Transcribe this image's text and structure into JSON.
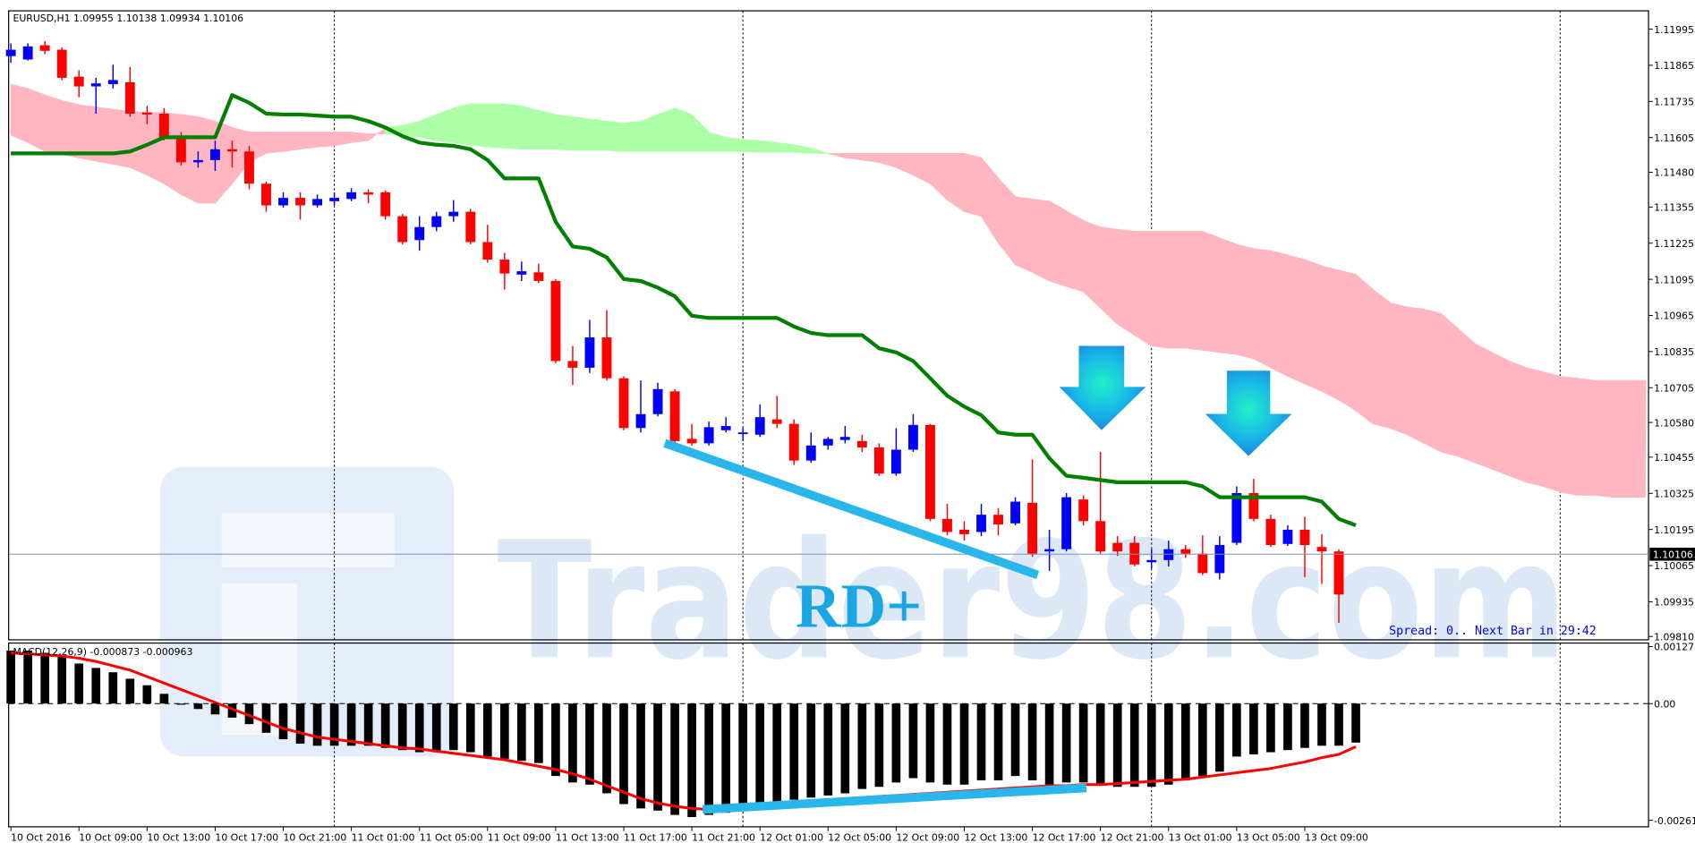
{
  "chart_data": [
    {
      "type": "candlestick",
      "title": "EURUSD,H1  1.09955 1.10138 1.09934 1.10106",
      "up_color": "#0000ff",
      "down_color": "#ff0000",
      "open": [
        1.11898,
        1.11886,
        1.11937,
        1.11921,
        1.11824,
        1.11789,
        1.11797,
        1.11804,
        1.11695,
        1.11691,
        1.11606,
        1.11516,
        1.11524,
        1.11563,
        1.11555,
        1.11439,
        1.11361,
        1.11388,
        1.11361,
        1.11376,
        1.11384,
        1.11408,
        1.11408,
        1.11322,
        1.11236,
        1.11283,
        1.11322,
        1.11338,
        1.11229,
        1.11166,
        1.11112,
        1.1112,
        1.11089,
        1.10801,
        1.10777,
        1.10886,
        1.10739,
        1.1056,
        1.1061,
        1.10692,
        1.10521,
        1.10505,
        1.10552,
        1.1054,
        1.10536,
        1.10591,
        1.10575,
        1.10443,
        1.10497,
        1.10517,
        1.10513,
        1.1049,
        1.10396,
        1.10482,
        1.10571,
        1.10233,
        1.10194,
        1.10186,
        1.10248,
        1.10217,
        1.10291,
        1.10116,
        1.10124,
        1.10303,
        1.10225,
        1.10147,
        1.10147,
        1.10077,
        1.10085,
        1.10124,
        1.10108,
        1.10038,
        1.10147,
        1.10326,
        1.10233,
        1.10143,
        1.10194,
        1.10132,
        1.10116
      ],
      "high": [
        1.11944,
        1.11944,
        1.11952,
        1.11929,
        1.11847,
        1.1182,
        1.11867,
        1.11859,
        1.11719,
        1.11711,
        1.11625,
        1.11555,
        1.11594,
        1.11594,
        1.11575,
        1.11446,
        1.11408,
        1.11408,
        1.114,
        1.11408,
        1.11423,
        1.11419,
        1.11415,
        1.1133,
        1.11322,
        1.11338,
        1.1138,
        1.11349,
        1.11291,
        1.1119,
        1.11159,
        1.11151,
        1.11096,
        1.10855,
        1.10949,
        1.10984,
        1.10746,
        1.10731,
        1.10723,
        1.107,
        1.10575,
        1.10583,
        1.10599,
        1.1056,
        1.10645,
        1.10676,
        1.10591,
        1.10544,
        1.10528,
        1.10567,
        1.10536,
        1.10505,
        1.1056,
        1.1061,
        1.10575,
        1.10287,
        1.10225,
        1.10287,
        1.10272,
        1.10311,
        1.10447,
        1.10194,
        1.10326,
        1.10318,
        1.10474,
        1.10171,
        1.10171,
        1.10124,
        1.10155,
        1.10139,
        1.10174,
        1.10171,
        1.1035,
        1.10377,
        1.10248,
        1.1021,
        1.10241,
        1.10178,
        1.10124
      ],
      "low": [
        1.11874,
        1.11882,
        1.11905,
        1.11812,
        1.1175,
        1.11691,
        1.11781,
        1.1168,
        1.11653,
        1.11594,
        1.11505,
        1.11497,
        1.11485,
        1.11497,
        1.11419,
        1.11338,
        1.11353,
        1.1131,
        1.11353,
        1.11361,
        1.11376,
        1.11369,
        1.1131,
        1.11221,
        1.11198,
        1.11268,
        1.11302,
        1.11221,
        1.11155,
        1.11058,
        1.11089,
        1.11081,
        1.10793,
        1.10715,
        1.10758,
        1.10731,
        1.10552,
        1.10544,
        1.10602,
        1.10505,
        1.10497,
        1.10497,
        1.10544,
        1.10513,
        1.10528,
        1.1056,
        1.10427,
        1.10435,
        1.10482,
        1.10505,
        1.10474,
        1.10388,
        1.10388,
        1.10474,
        1.10225,
        1.10174,
        1.10155,
        1.10171,
        1.10174,
        1.1021,
        1.10097,
        1.10046,
        1.10116,
        1.1021,
        1.10108,
        1.101,
        1.10062,
        1.10054,
        1.10062,
        1.10093,
        1.10031,
        1.10015,
        1.10139,
        1.10225,
        1.10132,
        1.10136,
        1.10023,
        1.09999,
        1.09859
      ],
      "close": [
        1.11921,
        1.11933,
        1.11917,
        1.1182,
        1.11789,
        1.118,
        1.11812,
        1.11691,
        1.11688,
        1.11606,
        1.11516,
        1.11524,
        1.11563,
        1.11555,
        1.11439,
        1.11361,
        1.11388,
        1.11361,
        1.11384,
        1.11388,
        1.11408,
        1.114,
        1.11322,
        1.11229,
        1.11283,
        1.11322,
        1.11338,
        1.11229,
        1.11166,
        1.11116,
        1.11124,
        1.11089,
        1.10801,
        1.10777,
        1.10886,
        1.10739,
        1.1056,
        1.1061,
        1.107,
        1.10513,
        1.10505,
        1.10563,
        1.10567,
        1.10544,
        1.10599,
        1.10575,
        1.10443,
        1.10497,
        1.10521,
        1.10528,
        1.1049,
        1.10396,
        1.10482,
        1.10571,
        1.10233,
        1.10186,
        1.10178,
        1.10248,
        1.10213,
        1.10295,
        1.10108,
        1.10124,
        1.10311,
        1.10225,
        1.10116,
        1.10116,
        1.10069,
        1.10085,
        1.10124,
        1.10108,
        1.10038,
        1.10139,
        1.10326,
        1.10233,
        1.10139,
        1.10194,
        1.10139,
        1.10116,
        1.09961
      ],
      "kijun": {
        "color": "#008000",
        "values": [
          1.11548,
          1.11548,
          1.11548,
          1.11548,
          1.11548,
          1.11548,
          1.11548,
          1.11555,
          1.11579,
          1.11606,
          1.11606,
          1.11606,
          1.11606,
          1.11758,
          1.1173,
          1.11691,
          1.11688,
          1.11688,
          1.11684,
          1.1168,
          1.1168,
          1.11664,
          1.11641,
          1.1161,
          1.11587,
          1.11579,
          1.11575,
          1.11563,
          1.11524,
          1.11458,
          1.11458,
          1.11458,
          1.11302,
          1.11213,
          1.11205,
          1.11174,
          1.11096,
          1.11089,
          1.11065,
          1.11034,
          1.10964,
          1.10956,
          1.10956,
          1.10956,
          1.10956,
          1.10956,
          1.10925,
          1.10902,
          1.10894,
          1.10894,
          1.10894,
          1.10847,
          1.10832,
          1.10801,
          1.10739,
          1.10676,
          1.10637,
          1.10606,
          1.10544,
          1.10536,
          1.10536,
          1.10451,
          1.10388,
          1.10381,
          1.10373,
          1.10365,
          1.10365,
          1.10365,
          1.10365,
          1.10365,
          1.1035,
          1.10311,
          1.10311,
          1.10311,
          1.10311,
          1.10311,
          1.10311,
          1.10295,
          1.10233,
          1.1021
        ]
      },
      "cloud_up_color": "#adffa8",
      "cloud_down_color": "#ffb6c1",
      "span_a": [
        1.11614,
        1.11587,
        1.11555,
        1.11544,
        1.11532,
        1.1152,
        1.11509,
        1.11497,
        1.1147,
        1.11439,
        1.114,
        1.11369,
        1.11369,
        1.11439,
        1.11516,
        1.11548,
        1.11555,
        1.11563,
        1.11571,
        1.11575,
        1.11587,
        1.11594,
        1.11641,
        1.11649,
        1.11664,
        1.11688,
        1.11711,
        1.11727,
        1.11727,
        1.11727,
        1.11719,
        1.11703,
        1.11688,
        1.1168,
        1.11672,
        1.11664,
        1.11657,
        1.11664,
        1.11688,
        1.11711,
        1.11688,
        1.11625,
        1.11606,
        1.11598,
        1.11594,
        1.11587,
        1.11579,
        1.11567,
        1.11548,
        1.11532,
        1.11524,
        1.11516,
        1.11497,
        1.1147,
        1.11439,
        1.1138,
        1.11338,
        1.11322,
        1.11225,
        1.11147,
        1.1112,
        1.11089,
        1.11069,
        1.1105,
        1.10991,
        1.10933,
        1.10894,
        1.10855,
        1.10847,
        1.10847,
        1.1084,
        1.10832,
        1.10824,
        1.10809,
        1.10777,
        1.10746,
        1.10719,
        1.10692,
        1.10661,
        1.10622,
        1.10575,
        1.1056,
        1.10536,
        1.10505,
        1.10474,
        1.10458,
        1.10435,
        1.10412,
        1.10388,
        1.10365,
        1.1035,
        1.1033,
        1.10318,
        1.10318,
        1.10311,
        1.10311,
        1.10311
      ],
      "span_b": [
        1.11797,
        1.11781,
        1.11758,
        1.11738,
        1.11723,
        1.11715,
        1.11707,
        1.11699,
        1.11695,
        1.11695,
        1.11688,
        1.1168,
        1.11664,
        1.11641,
        1.11625,
        1.11625,
        1.11625,
        1.11625,
        1.11625,
        1.11625,
        1.11625,
        1.11618,
        1.11618,
        1.11614,
        1.11606,
        1.11594,
        1.11587,
        1.11579,
        1.11571,
        1.11567,
        1.11563,
        1.11563,
        1.11563,
        1.11559,
        1.11559,
        1.11559,
        1.11555,
        1.11555,
        1.11555,
        1.11555,
        1.11555,
        1.11555,
        1.11555,
        1.11555,
        1.11552,
        1.11552,
        1.11552,
        1.11548,
        1.11548,
        1.11548,
        1.11548,
        1.11548,
        1.11548,
        1.11548,
        1.11548,
        1.11548,
        1.11548,
        1.11532,
        1.11458,
        1.11392,
        1.11384,
        1.11376,
        1.11341,
        1.11306,
        1.11283,
        1.11275,
        1.11268,
        1.11268,
        1.11268,
        1.11268,
        1.11268,
        1.11244,
        1.11221,
        1.11205,
        1.11198,
        1.11182,
        1.11166,
        1.11143,
        1.11128,
        1.11112,
        1.11058,
        1.11011,
        1.10995,
        1.10988,
        1.10972,
        1.10917,
        1.10863,
        1.10832,
        1.10801,
        1.10777,
        1.10762,
        1.10746,
        1.10739,
        1.10731,
        1.10731,
        1.10731,
        1.10731
      ],
      "current_price": 1.10106,
      "xlim": [
        -0.13,
        96.19
      ],
      "xticks": [
        {
          "value": 0,
          "label": "10 Oct 2016"
        },
        {
          "value": 4,
          "label": "10 Oct 09:00"
        },
        {
          "value": 8,
          "label": "10 Oct 13:00"
        },
        {
          "value": 12,
          "label": "10 Oct 17:00"
        },
        {
          "value": 16,
          "label": "10 Oct 21:00"
        },
        {
          "value": 20,
          "label": "11 Oct 01:00"
        },
        {
          "value": 24,
          "label": "11 Oct 05:00"
        },
        {
          "value": 28,
          "label": "11 Oct 09:00"
        },
        {
          "value": 32,
          "label": "11 Oct 13:00"
        },
        {
          "value": 36,
          "label": "11 Oct 17:00"
        },
        {
          "value": 40,
          "label": "11 Oct 21:00"
        },
        {
          "value": 44,
          "label": "12 Oct 01:00"
        },
        {
          "value": 48,
          "label": "12 Oct 05:00"
        },
        {
          "value": 52,
          "label": "12 Oct 09:00"
        },
        {
          "value": 56,
          "label": "12 Oct 13:00"
        },
        {
          "value": 60,
          "label": "12 Oct 17:00"
        },
        {
          "value": 64,
          "label": "12 Oct 21:00"
        },
        {
          "value": 68,
          "label": "13 Oct 01:00"
        },
        {
          "value": 72,
          "label": "13 Oct 05:00"
        },
        {
          "value": 76,
          "label": "13 Oct 09:00"
        }
      ],
      "vgrid": [
        19,
        43,
        67,
        91
      ],
      "ylim": [
        1.09798,
        1.12061
      ],
      "yticks": [
        1.11995,
        1.11865,
        1.11735,
        1.11605,
        {
          "value": 1.1148,
          "label": "1.11480"
        },
        1.11355,
        1.11225,
        1.11095,
        1.10965,
        1.10835,
        1.10705,
        {
          "value": 1.1058,
          "label": "1.10580"
        },
        1.10455,
        1.10325,
        1.10195,
        1.10065,
        1.09935,
        {
          "value": 1.0981,
          "label": "1.09810"
        }
      ],
      "annotation": "RD+",
      "status": "Spread: 0.. Next Bar in 29:42",
      "watermark": "Trader98.com"
    },
    {
      "type": "macd",
      "title": "MACD(12,26,9) -0.000873 -0.000963",
      "histogram": {
        "color": "#000000",
        "values": [
          0.001185,
          0.001185,
          0.001136,
          0.001088,
          0.000895,
          0.000798,
          0.000701,
          0.000556,
          0.000411,
          0.000218,
          -2.4e-05,
          -0.000121,
          -0.000242,
          -0.000314,
          -0.000459,
          -0.000653,
          -0.000798,
          -0.000895,
          -0.000943,
          -0.000943,
          -0.000943,
          -0.000943,
          -0.000991,
          -0.00104,
          -0.001088,
          -0.001088,
          -0.00104,
          -0.001088,
          -0.001185,
          -0.001233,
          -0.001281,
          -0.00133,
          -0.00162,
          -0.001765,
          -0.001813,
          -0.002007,
          -0.002248,
          -0.002345,
          -0.002393,
          -0.00249,
          -0.002538,
          -0.00249,
          -0.002442,
          -0.002393,
          -0.002297,
          -0.0022,
          -0.002152,
          -0.002103,
          -0.002055,
          -0.002007,
          -0.00191,
          -0.001862,
          -0.001765,
          -0.001668,
          -0.001765,
          -0.001813,
          -0.001813,
          -0.001716,
          -0.001716,
          -0.00162,
          -0.001716,
          -0.001813,
          -0.001765,
          -0.001765,
          -0.001813,
          -0.001862,
          -0.001862,
          -0.001862,
          -0.001813,
          -0.001716,
          -0.00162,
          -0.001523,
          -0.001185,
          -0.001136,
          -0.001088,
          -0.00104,
          -0.000991,
          -0.000943,
          -0.000943,
          -0.000873
        ]
      },
      "signal": {
        "color": "#ff0000",
        "values": [
          0.001136,
          0.001112,
          0.001088,
          0.001064,
          0.001015,
          0.000943,
          0.000846,
          0.000749,
          0.000604,
          0.000459,
          0.000314,
          0.000169,
          2.4e-05,
          -0.000121,
          -0.000266,
          -0.000411,
          -0.000556,
          -0.000653,
          -0.000749,
          -0.000798,
          -0.000846,
          -0.000895,
          -0.000943,
          -0.000991,
          -0.001015,
          -0.001064,
          -0.001112,
          -0.00116,
          -0.001209,
          -0.001257,
          -0.00133,
          -0.001402,
          -0.001475,
          -0.001571,
          -0.001692,
          -0.001837,
          -0.001982,
          -0.002127,
          -0.002224,
          -0.002297,
          -0.002345,
          -0.002369,
          -0.002345,
          -0.002321,
          -0.002273,
          -0.002248,
          -0.0022,
          -0.002176,
          -0.002152,
          -0.002127,
          -0.002103,
          -0.002079,
          -0.002055,
          -0.002031,
          -0.002007,
          -0.001982,
          -0.001958,
          -0.001934,
          -0.00191,
          -0.001886,
          -0.001862,
          -0.001837,
          -0.001837,
          -0.001813,
          -0.001813,
          -0.001789,
          -0.001765,
          -0.001741,
          -0.001716,
          -0.001692,
          -0.001644,
          -0.001596,
          -0.001547,
          -0.001499,
          -0.001451,
          -0.001378,
          -0.001306,
          -0.001209,
          -0.001136,
          -0.000963
        ]
      },
      "ylim": [
        -0.002756,
        0.001354
      ],
      "yticks": [
        0.001275,
        {
          "value": 0,
          "label": "0.00"
        },
        -0.002611
      ]
    }
  ]
}
